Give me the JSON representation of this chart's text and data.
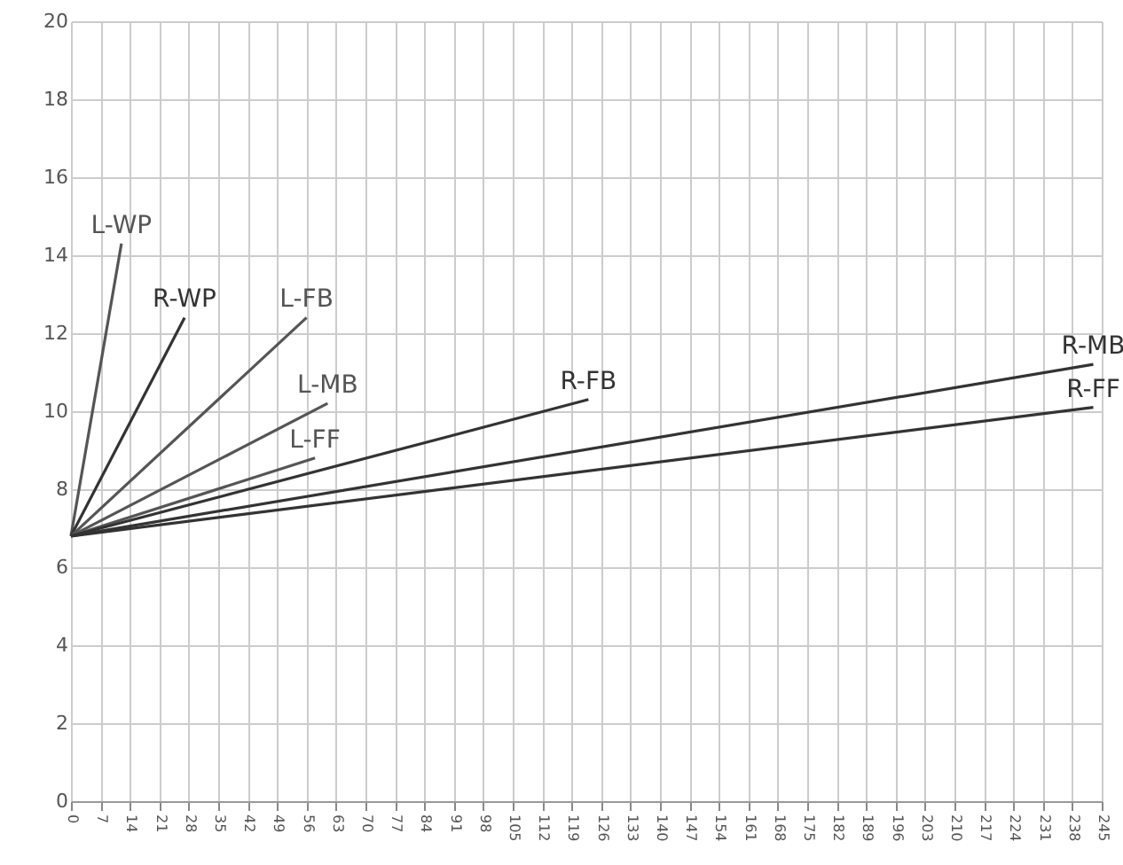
{
  "chart_data": {
    "type": "line",
    "xlim": [
      0,
      245
    ],
    "ylim": [
      0,
      20
    ],
    "xticks": [
      0,
      7,
      14,
      21,
      28,
      35,
      42,
      49,
      56,
      63,
      70,
      77,
      84,
      91,
      98,
      105,
      112,
      119,
      126,
      133,
      140,
      147,
      154,
      161,
      168,
      175,
      182,
      189,
      196,
      203,
      210,
      217,
      224,
      231,
      238,
      245
    ],
    "yticks": [
      0,
      2,
      4,
      6,
      8,
      10,
      12,
      14,
      16,
      18,
      20
    ],
    "grid": true,
    "marker": "none",
    "line_style": "solid",
    "series": [
      {
        "name": "L-WP",
        "color": "#555555",
        "x": [
          0,
          12
        ],
        "values": [
          6.8,
          14.3
        ]
      },
      {
        "name": "R-WP",
        "color": "#333333",
        "x": [
          0,
          27
        ],
        "values": [
          6.8,
          12.4
        ]
      },
      {
        "name": "L-FB",
        "color": "#555555",
        "x": [
          0,
          56
        ],
        "values": [
          6.8,
          12.4
        ]
      },
      {
        "name": "L-MB",
        "color": "#555555",
        "x": [
          0,
          61
        ],
        "values": [
          6.8,
          10.2
        ]
      },
      {
        "name": "L-FF",
        "color": "#555555",
        "x": [
          0,
          58
        ],
        "values": [
          6.8,
          8.8
        ]
      },
      {
        "name": "R-FB",
        "color": "#333333",
        "x": [
          0,
          123
        ],
        "values": [
          6.8,
          10.3
        ]
      },
      {
        "name": "R-MB",
        "color": "#333333",
        "x": [
          0,
          243
        ],
        "values": [
          6.8,
          11.2
        ]
      },
      {
        "name": "R-FF",
        "color": "#333333",
        "x": [
          0,
          243
        ],
        "values": [
          6.8,
          10.1
        ]
      }
    ]
  }
}
